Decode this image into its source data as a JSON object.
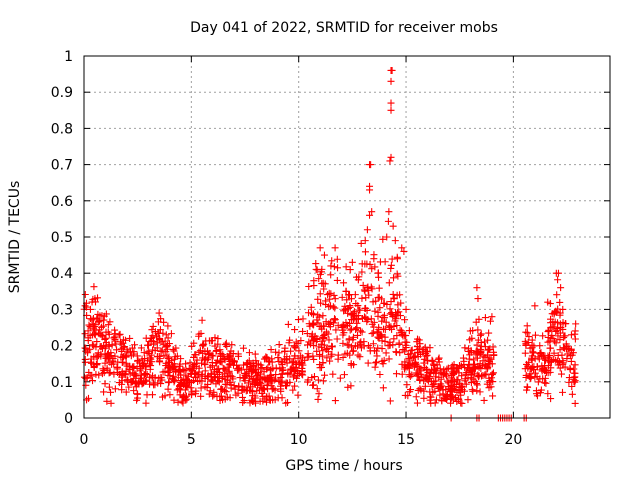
{
  "chart_data": {
    "type": "scatter",
    "title": "Day 041 of 2022, SRMTID for receiver mobs",
    "xlabel": "GPS time / hours",
    "ylabel": "SRMTID / TECUs",
    "xlim": [
      0,
      24.5
    ],
    "ylim": [
      0,
      1
    ],
    "x_ticks": [
      0,
      5,
      10,
      15,
      20
    ],
    "x_tick_labels": [
      "0",
      "5",
      "10",
      "15",
      "20"
    ],
    "y_ticks": [
      0,
      0.1,
      0.2,
      0.3,
      0.4,
      0.5,
      0.6,
      0.7,
      0.8,
      0.9,
      1
    ],
    "y_tick_labels": [
      "0",
      "0.1",
      "0.2",
      "0.3",
      "0.4",
      "0.5",
      "0.6",
      "0.7",
      "0.8",
      "0.9",
      "1"
    ],
    "grid": true,
    "marker": "+",
    "marker_color": "#ff0000",
    "series": [
      {
        "name": "SRMTID",
        "profile": [
          {
            "x": 0.0,
            "y": 0.22,
            "spread": 0.07
          },
          {
            "x": 0.7,
            "y": 0.2,
            "spread": 0.06
          },
          {
            "x": 1.5,
            "y": 0.16,
            "spread": 0.05
          },
          {
            "x": 2.5,
            "y": 0.12,
            "spread": 0.04
          },
          {
            "x": 3.0,
            "y": 0.14,
            "spread": 0.05
          },
          {
            "x": 3.5,
            "y": 0.2,
            "spread": 0.06
          },
          {
            "x": 4.2,
            "y": 0.13,
            "spread": 0.04
          },
          {
            "x": 4.8,
            "y": 0.09,
            "spread": 0.03
          },
          {
            "x": 5.4,
            "y": 0.16,
            "spread": 0.05
          },
          {
            "x": 6.5,
            "y": 0.13,
            "spread": 0.04
          },
          {
            "x": 8.0,
            "y": 0.1,
            "spread": 0.035
          },
          {
            "x": 9.0,
            "y": 0.11,
            "spread": 0.04
          },
          {
            "x": 10.0,
            "y": 0.15,
            "spread": 0.05
          },
          {
            "x": 10.8,
            "y": 0.24,
            "spread": 0.08
          },
          {
            "x": 11.5,
            "y": 0.3,
            "spread": 0.09
          },
          {
            "x": 12.5,
            "y": 0.24,
            "spread": 0.07
          },
          {
            "x": 13.0,
            "y": 0.3,
            "spread": 0.1
          },
          {
            "x": 13.8,
            "y": 0.26,
            "spread": 0.08
          },
          {
            "x": 14.5,
            "y": 0.3,
            "spread": 0.09
          },
          {
            "x": 15.0,
            "y": 0.16,
            "spread": 0.05
          },
          {
            "x": 16.0,
            "y": 0.13,
            "spread": 0.04
          },
          {
            "x": 17.0,
            "y": 0.09,
            "spread": 0.03
          },
          {
            "x": 17.8,
            "y": 0.12,
            "spread": 0.05
          },
          {
            "x": 18.5,
            "y": 0.17,
            "spread": 0.05
          },
          {
            "x": 19.0,
            "y": 0.15,
            "spread": 0.05
          },
          {
            "x": 20.6,
            "y": 0.15,
            "spread": 0.05
          },
          {
            "x": 21.0,
            "y": 0.16,
            "spread": 0.05
          },
          {
            "x": 21.5,
            "y": 0.14,
            "spread": 0.04
          },
          {
            "x": 22.0,
            "y": 0.26,
            "spread": 0.07
          },
          {
            "x": 22.5,
            "y": 0.15,
            "spread": 0.05
          },
          {
            "x": 22.9,
            "y": 0.14,
            "spread": 0.05
          }
        ],
        "segments": [
          [
            0.0,
            19.1
          ],
          [
            20.55,
            22.9
          ]
        ],
        "points_per_hour": 85,
        "outliers": [
          {
            "x": 0.05,
            "y": 0.31
          },
          {
            "x": 0.12,
            "y": 0.05
          },
          {
            "x": 0.3,
            "y": 0.3
          },
          {
            "x": 3.5,
            "y": 0.29
          },
          {
            "x": 5.5,
            "y": 0.27
          },
          {
            "x": 11.0,
            "y": 0.47
          },
          {
            "x": 11.2,
            "y": 0.45
          },
          {
            "x": 11.5,
            "y": 0.42
          },
          {
            "x": 11.8,
            "y": 0.38
          },
          {
            "x": 12.2,
            "y": 0.35
          },
          {
            "x": 12.4,
            "y": 0.41
          },
          {
            "x": 12.5,
            "y": 0.43
          },
          {
            "x": 12.8,
            "y": 0.39
          },
          {
            "x": 13.1,
            "y": 0.49
          },
          {
            "x": 13.2,
            "y": 0.52
          },
          {
            "x": 13.3,
            "y": 0.56
          },
          {
            "x": 13.3,
            "y": 0.63
          },
          {
            "x": 13.3,
            "y": 0.64
          },
          {
            "x": 13.3,
            "y": 0.7
          },
          {
            "x": 13.35,
            "y": 0.7
          },
          {
            "x": 13.4,
            "y": 0.57
          },
          {
            "x": 13.5,
            "y": 0.44
          },
          {
            "x": 13.7,
            "y": 0.4
          },
          {
            "x": 14.1,
            "y": 0.5
          },
          {
            "x": 14.2,
            "y": 0.57
          },
          {
            "x": 14.25,
            "y": 0.71
          },
          {
            "x": 14.3,
            "y": 0.72
          },
          {
            "x": 14.3,
            "y": 0.85
          },
          {
            "x": 14.3,
            "y": 0.87
          },
          {
            "x": 14.3,
            "y": 0.93
          },
          {
            "x": 14.3,
            "y": 0.96
          },
          {
            "x": 14.35,
            "y": 0.96
          },
          {
            "x": 14.4,
            "y": 0.53
          },
          {
            "x": 14.5,
            "y": 0.49
          },
          {
            "x": 14.6,
            "y": 0.44
          },
          {
            "x": 14.8,
            "y": 0.47
          },
          {
            "x": 14.9,
            "y": 0.46
          },
          {
            "x": 15.0,
            "y": 0.3
          },
          {
            "x": 18.3,
            "y": 0.36
          },
          {
            "x": 18.35,
            "y": 0.33
          },
          {
            "x": 19.0,
            "y": 0.28
          },
          {
            "x": 21.0,
            "y": 0.31
          },
          {
            "x": 21.6,
            "y": 0.32
          },
          {
            "x": 22.0,
            "y": 0.4
          },
          {
            "x": 22.1,
            "y": 0.4
          },
          {
            "x": 22.2,
            "y": 0.36
          },
          {
            "x": 22.3,
            "y": 0.3
          },
          {
            "x": 22.9,
            "y": 0.26
          }
        ],
        "zero_points": [
          {
            "x": 17.1,
            "y": 0
          },
          {
            "x": 18.3,
            "y": 0
          },
          {
            "x": 18.4,
            "y": 0
          },
          {
            "x": 19.3,
            "y": 0
          },
          {
            "x": 19.4,
            "y": 0
          },
          {
            "x": 19.5,
            "y": 0
          },
          {
            "x": 19.6,
            "y": 0
          },
          {
            "x": 19.7,
            "y": 0
          },
          {
            "x": 19.8,
            "y": 0
          },
          {
            "x": 19.9,
            "y": 0
          },
          {
            "x": 20.5,
            "y": 0
          },
          {
            "x": 20.6,
            "y": 0
          }
        ]
      }
    ]
  }
}
